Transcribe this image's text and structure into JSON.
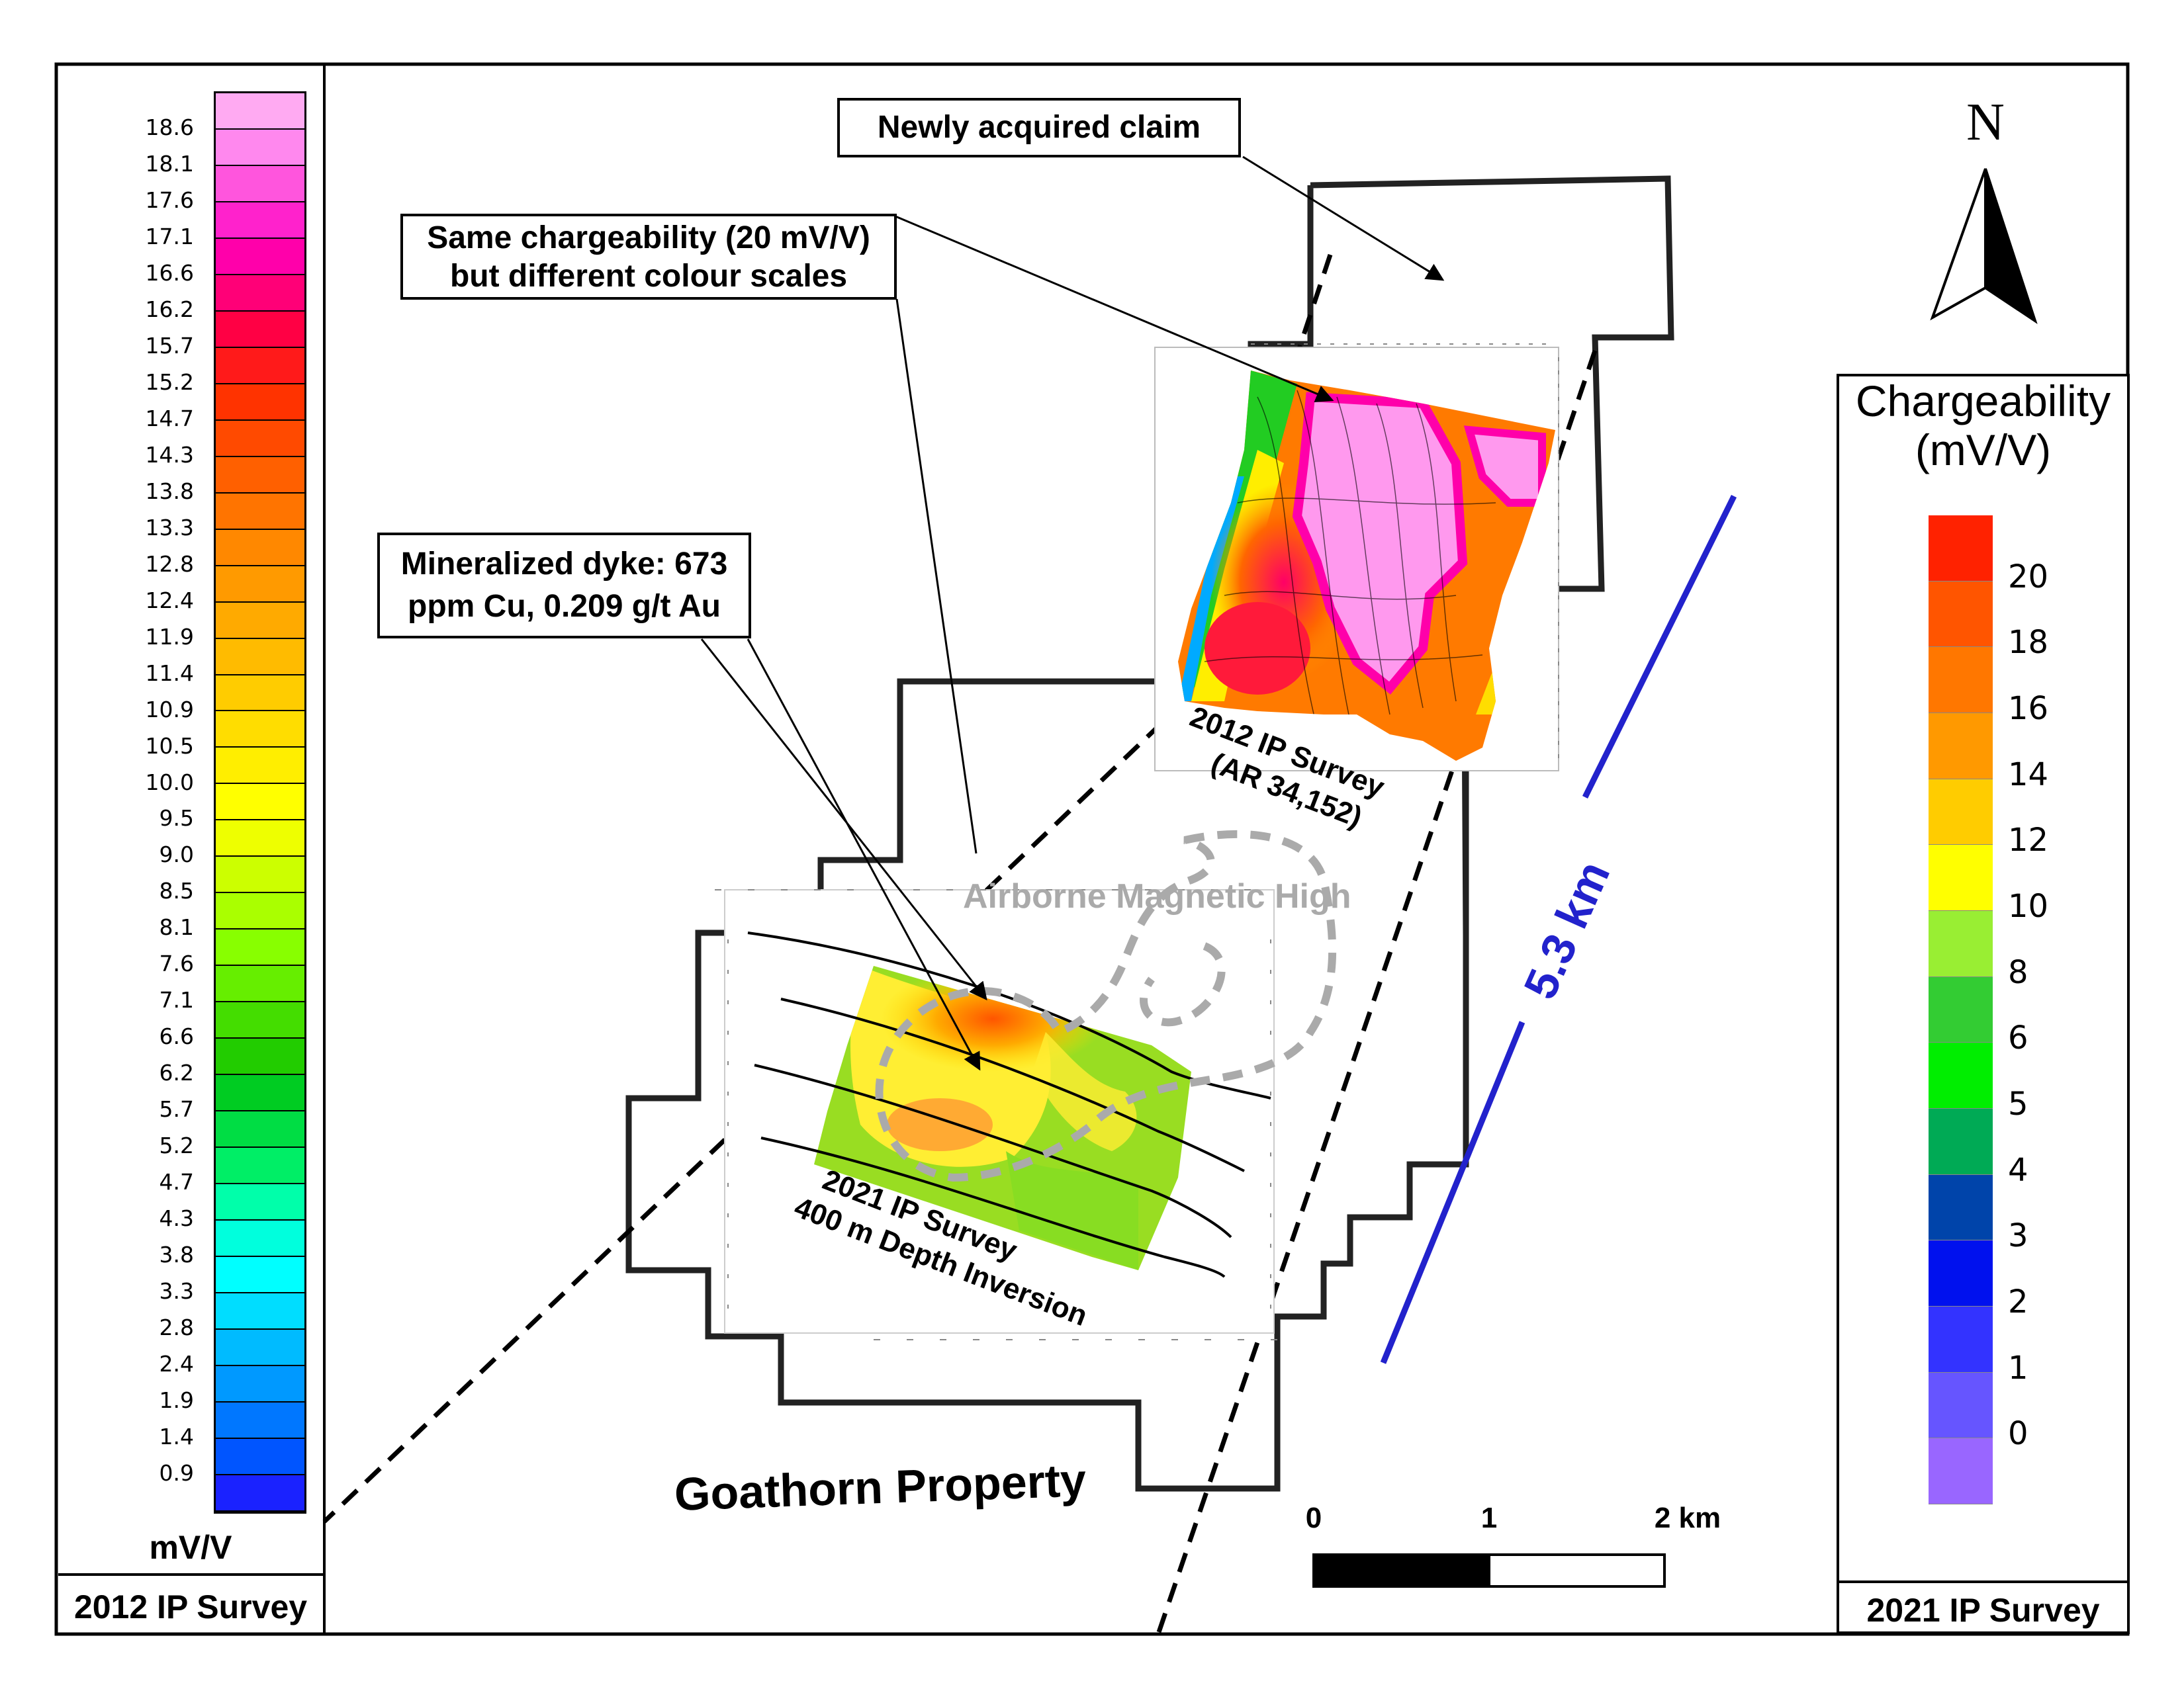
{
  "map": {
    "property_name": "Goathorn Property",
    "north_label": "N",
    "scale_bar": {
      "labels": [
        "0",
        "1",
        "2 km"
      ]
    },
    "distance_label": "5.3 km",
    "annotations": {
      "new_claim": "Newly acquired claim",
      "chargeability_note": "Same chargeability (20 mV/V)\nbut different colour scales",
      "dyke_note": "Mineralized dyke: 673\nppm Cu, 0.209 g/t Au",
      "magnetic_high": "Airborne Magnetic High"
    },
    "survey_2012_label": "2012 IP Survey\n(AR 34,152)",
    "survey_2021_label": "2021 IP Survey\n400 m Depth Inversion"
  },
  "legend_2012": {
    "title": "2012 IP Survey",
    "unit": "mV/V",
    "ticks": [
      "18.6",
      "18.1",
      "17.6",
      "17.1",
      "16.6",
      "16.2",
      "15.7",
      "15.2",
      "14.7",
      "14.3",
      "13.8",
      "13.3",
      "12.8",
      "12.4",
      "11.9",
      "11.4",
      "10.9",
      "10.5",
      "10.0",
      "9.5",
      "9.0",
      "8.5",
      "8.1",
      "7.6",
      "7.1",
      "6.6",
      "6.2",
      "5.7",
      "5.2",
      "4.7",
      "4.3",
      "3.8",
      "3.3",
      "2.8",
      "2.4",
      "1.9",
      "1.4",
      "0.9"
    ],
    "colors": [
      "#ff88ee",
      "#ff55dd",
      "#ff22cc",
      "#ff00aa",
      "#ff0077",
      "#ff0044",
      "#ff1a1a",
      "#ff3300",
      "#ff4a00",
      "#ff6000",
      "#ff7400",
      "#ff8800",
      "#ff9a00",
      "#ffaa00",
      "#ffbb00",
      "#ffcc00",
      "#ffdd00",
      "#ffee00",
      "#ffff00",
      "#eeff00",
      "#ccff00",
      "#aaff00",
      "#88ff00",
      "#66ee00",
      "#44dd00",
      "#22cc00",
      "#00cc22",
      "#00dd44",
      "#00ee66",
      "#00ffaa",
      "#00ffdd",
      "#00ffff",
      "#00ddff",
      "#00bbff",
      "#0099ff",
      "#0077ff",
      "#0055ff",
      "#1a22ff"
    ]
  },
  "legend_2021": {
    "title": "2021 IP Survey",
    "heading": "Chargeability\n(mV/V)",
    "ticks": [
      "20",
      "18",
      "16",
      "14",
      "12",
      "10",
      "8",
      "6",
      "5",
      "4",
      "3",
      "2",
      "1",
      "0"
    ],
    "colors": [
      "#ff2200",
      "#ff5500",
      "#ff7700",
      "#ff9900",
      "#ffcc00",
      "#ffff00",
      "#99ee33",
      "#33cc33",
      "#00ee00",
      "#00aa55",
      "#0044aa",
      "#0011ee",
      "#3333ff",
      "#6655ff",
      "#9966ff"
    ]
  }
}
